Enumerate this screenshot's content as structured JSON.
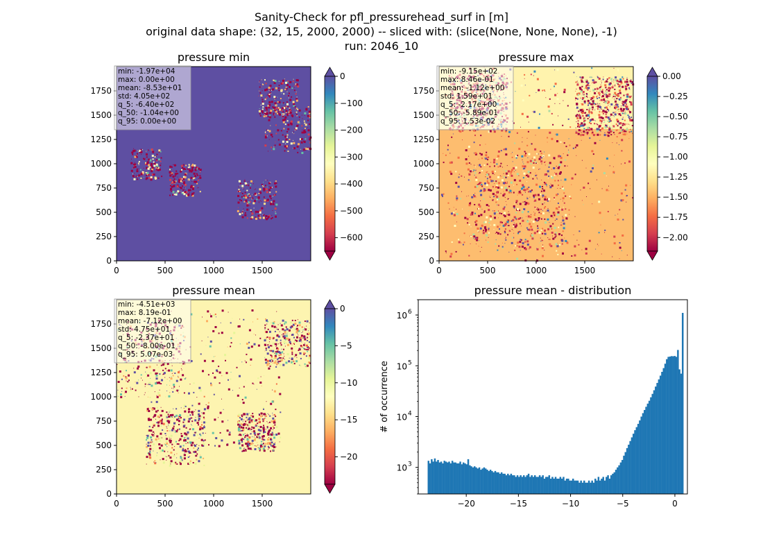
{
  "suptitle": {
    "line1": "Sanity-Check for pfl_pressurehead_surf in [m]",
    "line2": "original data shape: (32, 15, 2000, 2000) -- sliced with: (slice(None, None, None), -1)",
    "line3": "run: 2046_10"
  },
  "colors": {
    "spectral": [
      "#9e0142",
      "#d53e4f",
      "#f46d43",
      "#fdae61",
      "#fee08b",
      "#ffffbf",
      "#e6f598",
      "#abdda4",
      "#66c2a5",
      "#3288bd",
      "#5e4fa2"
    ],
    "hist_bar": "#1f77b4"
  },
  "chart_data": [
    {
      "type": "heatmap",
      "title": "pressure min",
      "colormap": "Spectral",
      "xticks": [
        "0",
        "500",
        "1000",
        "1500"
      ],
      "yticks": [
        "0",
        "250",
        "500",
        "750",
        "1000",
        "1250",
        "1500",
        "1750"
      ],
      "xlim": [
        0,
        2000
      ],
      "ylim": [
        0,
        2000
      ],
      "colorbar": {
        "min": -650,
        "max": 0,
        "ticks": [
          "0",
          "−100",
          "−200",
          "−300",
          "−400",
          "−500",
          "−600"
        ],
        "tick_values": [
          0,
          -100,
          -200,
          -300,
          -400,
          -500,
          -600
        ],
        "extend": "both"
      },
      "stats": [
        "min: -1.97e+04",
        "max: 0.00e+00",
        "mean: -8.53e+01",
        "std: 4.05e+02",
        "q_5: -6.40e+02",
        "q_50: -1.04e+00",
        "q_95: 0.00e+00"
      ]
    },
    {
      "type": "heatmap",
      "title": "pressure max",
      "colormap": "Spectral",
      "xticks": [
        "0",
        "500",
        "1000",
        "1500"
      ],
      "yticks": [
        "0",
        "250",
        "500",
        "750",
        "1000",
        "1250",
        "1500",
        "1750"
      ],
      "xlim": [
        0,
        2000
      ],
      "ylim": [
        0,
        2000
      ],
      "colorbar": {
        "min": -2.17,
        "max": 0.0,
        "ticks": [
          "0.00",
          "−0.25",
          "−0.50",
          "−0.75",
          "−1.00",
          "−1.25",
          "−1.50",
          "−1.75",
          "−2.00"
        ],
        "tick_values": [
          0,
          -0.25,
          -0.5,
          -0.75,
          -1.0,
          -1.25,
          -1.5,
          -1.75,
          -2.0
        ],
        "extend": "both"
      },
      "stats": [
        "min: -9.15e+02",
        "max: 8.46e-01",
        "mean: -1.12e+00",
        "std: 1.59e+01",
        "q_5: -2.17e+00",
        "q_50: -5.89e-01",
        "q_95: 1.53e-02"
      ]
    },
    {
      "type": "heatmap",
      "title": "pressure mean",
      "colormap": "Spectral",
      "xticks": [
        "0",
        "500",
        "1000",
        "1500"
      ],
      "yticks": [
        "0",
        "250",
        "500",
        "750",
        "1000",
        "1250",
        "1500",
        "1750"
      ],
      "xlim": [
        0,
        2000
      ],
      "ylim": [
        0,
        2000
      ],
      "colorbar": {
        "min": -23.7,
        "max": 0,
        "ticks": [
          "0",
          "−5",
          "−10",
          "−15",
          "−20"
        ],
        "tick_values": [
          0,
          -5,
          -10,
          -15,
          -20
        ],
        "extend": "both"
      },
      "stats": [
        "min: -4.51e+03",
        "max: 8.19e-01",
        "mean: -7.12e+00",
        "std: 4.75e+01",
        "q_5: -2.37e+01",
        "q_50: -8.00e-01",
        "q_95: 5.07e-03"
      ]
    },
    {
      "type": "bar",
      "title": "pressure mean - distribution",
      "ylabel": "# of occurrence",
      "xlabel": "",
      "yscale": "log",
      "xlim": [
        -24.6,
        1.2
      ],
      "ylim": [
        300,
        2000000
      ],
      "xticks": [
        -20,
        -15,
        -10,
        -5,
        0
      ],
      "xtick_labels": [
        "−20",
        "−15",
        "−10",
        "−5",
        "0"
      ],
      "ytick_labels": [
        "10",
        "10",
        "10",
        "10"
      ],
      "ytick_exps": [
        "3",
        "4",
        "5",
        "6"
      ],
      "ytick_values": [
        1000,
        10000,
        100000,
        1000000
      ],
      "bin_range": [
        -23.7,
        0.82
      ],
      "values": [
        1350,
        1200,
        1450,
        1300,
        1500,
        1300,
        1400,
        1250,
        1300,
        1200,
        1350,
        1300,
        1250,
        1300,
        1200,
        1350,
        1250,
        1250,
        1200,
        1200,
        1300,
        1150,
        1250,
        1200,
        1150,
        1450,
        1100,
        1050,
        1000,
        1050,
        1000,
        950,
        1000,
        900,
        950,
        1000,
        950,
        900,
        850,
        900,
        850,
        800,
        850,
        800,
        800,
        750,
        800,
        750,
        750,
        700,
        750,
        700,
        750,
        700,
        700,
        650,
        700,
        650,
        700,
        650,
        700,
        650,
        700,
        750,
        650,
        700,
        650,
        700,
        650,
        650,
        700,
        650,
        700,
        600,
        650,
        650,
        700,
        600,
        650,
        600,
        650,
        600,
        600,
        650,
        600,
        650,
        550,
        600,
        600,
        550,
        550,
        600,
        550,
        550,
        550,
        500,
        550,
        500,
        550,
        500,
        500,
        550,
        500,
        550,
        500,
        600,
        550,
        650,
        550,
        600,
        650,
        550,
        650,
        700,
        600,
        700,
        750,
        800,
        900,
        1000,
        1100,
        1250,
        1400,
        1700,
        2000,
        2400,
        2800,
        3300,
        3900,
        4600,
        5400,
        6200,
        7200,
        8400,
        10000,
        11700,
        13500,
        15600,
        18000,
        20500,
        24000,
        28000,
        33000,
        39000,
        46000,
        54000,
        64000,
        76000,
        90000,
        110000,
        135000,
        150000,
        152000,
        155000,
        154000,
        156000,
        150000,
        205000,
        85000,
        70000,
        1100000
      ]
    }
  ]
}
